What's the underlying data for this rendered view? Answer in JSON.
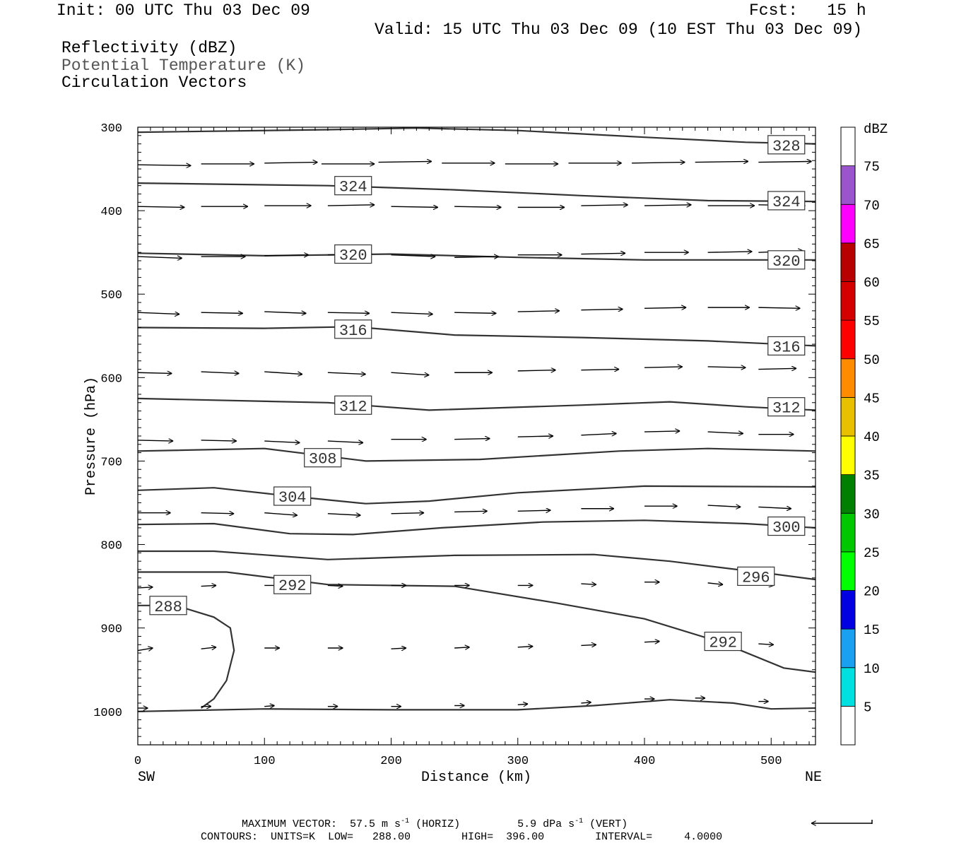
{
  "header": {
    "init": "Init: 00 UTC Thu 03 Dec 09",
    "fcst": "Fcst:   15 h",
    "valid": "Valid: 15 UTC Thu 03 Dec 09 (10 EST Thu 03 Dec 09)",
    "field1": "Reflectivity (dBZ)",
    "field2": "Potential Temperature (K)",
    "field3": "Circulation Vectors"
  },
  "footer": {
    "max_vector_label": "MAXIMUM VECTOR:",
    "horiz_val": "57.5 m s",
    "horiz_tail": " (HORIZ)",
    "vert_val": "5.9 dPa s",
    "vert_tail": " (VERT)",
    "exponent": "-1",
    "contours": "CONTOURS:  UNITS=K  LOW=   288.00        HIGH=  396.00        INTERVAL=     4.0000"
  },
  "chart_data": {
    "type": "cross-section",
    "xlabel": "Distance (km)",
    "ylabel": "Pressure (hPa)",
    "xlim": [
      0,
      535
    ],
    "ylim": [
      300,
      1040
    ],
    "x_ticks": [
      0,
      100,
      200,
      300,
      400,
      500
    ],
    "y_ticks": [
      300,
      400,
      500,
      600,
      700,
      800,
      900,
      1000
    ],
    "x_end_labels": {
      "left": "SW",
      "right": "NE"
    },
    "colorbar": {
      "unit": "dBZ",
      "labels": [
        "5",
        "10",
        "15",
        "20",
        "25",
        "30",
        "35",
        "40",
        "45",
        "50",
        "55",
        "60",
        "65",
        "70",
        "75"
      ],
      "colors": [
        "#ffffff",
        "#00e0e0",
        "#1aa0f0",
        "#0000e0",
        "#00ff00",
        "#00c800",
        "#008000",
        "#ffff00",
        "#e8c000",
        "#ff8c00",
        "#ff0000",
        "#d40000",
        "#b80000",
        "#ff00ff",
        "#9a55cc",
        "#ffffff"
      ]
    },
    "isentropes": [
      {
        "label": "328",
        "points": [
          [
            0,
            306
          ],
          [
            150,
            303
          ],
          [
            220,
            301
          ],
          [
            300,
            304
          ],
          [
            400,
            312
          ],
          [
            480,
            318
          ],
          [
            535,
            320
          ]
        ],
        "labels_at": [
          [
            512,
            321
          ]
        ]
      },
      {
        "label": "324",
        "points": [
          [
            0,
            367
          ],
          [
            150,
            370
          ],
          [
            250,
            375
          ],
          [
            350,
            382
          ],
          [
            450,
            388
          ],
          [
            535,
            389
          ]
        ],
        "labels_at": [
          [
            170,
            370
          ],
          [
            512,
            388
          ]
        ]
      },
      {
        "label": "320",
        "points": [
          [
            0,
            451
          ],
          [
            100,
            454
          ],
          [
            200,
            452
          ],
          [
            300,
            456
          ],
          [
            400,
            459
          ],
          [
            535,
            459
          ]
        ],
        "labels_at": [
          [
            170,
            452
          ],
          [
            512,
            459
          ]
        ]
      },
      {
        "label": "316",
        "points": [
          [
            0,
            540
          ],
          [
            100,
            541
          ],
          [
            170,
            539
          ],
          [
            250,
            549
          ],
          [
            350,
            552
          ],
          [
            450,
            556
          ],
          [
            535,
            562
          ]
        ],
        "labels_at": [
          [
            170,
            542
          ],
          [
            512,
            562
          ]
        ]
      },
      {
        "label": "312",
        "points": [
          [
            0,
            625
          ],
          [
            150,
            630
          ],
          [
            230,
            639
          ],
          [
            350,
            633
          ],
          [
            420,
            629
          ],
          [
            480,
            635
          ],
          [
            535,
            639
          ]
        ],
        "labels_at": [
          [
            170,
            633
          ],
          [
            512,
            635
          ]
        ]
      },
      {
        "label": "308",
        "points": [
          [
            0,
            688
          ],
          [
            100,
            685
          ],
          [
            180,
            700
          ],
          [
            270,
            698
          ],
          [
            380,
            688
          ],
          [
            450,
            685
          ],
          [
            535,
            688
          ]
        ],
        "labels_at": [
          [
            146,
            696
          ]
        ]
      },
      {
        "label": "304",
        "points": [
          [
            0,
            735
          ],
          [
            60,
            732
          ],
          [
            120,
            742
          ],
          [
            180,
            751
          ],
          [
            230,
            748
          ],
          [
            300,
            738
          ],
          [
            400,
            730
          ],
          [
            535,
            731
          ]
        ],
        "labels_at": [
          [
            122,
            742
          ]
        ]
      },
      {
        "label": "300",
        "points": [
          [
            0,
            776
          ],
          [
            60,
            775
          ],
          [
            120,
            787
          ],
          [
            170,
            788
          ],
          [
            240,
            780
          ],
          [
            320,
            773
          ],
          [
            400,
            771
          ],
          [
            480,
            775
          ],
          [
            535,
            780
          ]
        ],
        "labels_at": [
          [
            512,
            778
          ]
        ]
      },
      {
        "label": "296",
        "points": [
          [
            0,
            808
          ],
          [
            60,
            808
          ],
          [
            150,
            818
          ],
          [
            250,
            813
          ],
          [
            360,
            812
          ],
          [
            420,
            820
          ],
          [
            500,
            835
          ],
          [
            535,
            842
          ]
        ],
        "labels_at": [
          [
            488,
            838
          ]
        ]
      },
      {
        "label": "292",
        "points": [
          [
            0,
            833
          ],
          [
            70,
            833
          ],
          [
            150,
            848
          ],
          [
            250,
            850
          ],
          [
            330,
            870
          ],
          [
            400,
            889
          ],
          [
            460,
            917
          ],
          [
            510,
            948
          ],
          [
            535,
            953
          ]
        ],
        "labels_at": [
          [
            122,
            848
          ],
          [
            462,
            916
          ]
        ]
      },
      {
        "label": "288",
        "points": [
          [
            0,
            873
          ],
          [
            30,
            873
          ],
          [
            60,
            887
          ],
          [
            73,
            900
          ],
          [
            76,
            927
          ],
          [
            70,
            963
          ],
          [
            60,
            985
          ],
          [
            50,
            996
          ]
        ],
        "labels_at": [
          [
            24,
            873
          ]
        ]
      },
      {
        "label": "",
        "points": [
          [
            0,
            1000
          ],
          [
            100,
            997
          ],
          [
            200,
            998
          ],
          [
            300,
            998
          ],
          [
            360,
            993
          ],
          [
            420,
            986
          ],
          [
            470,
            990
          ],
          [
            500,
            997
          ],
          [
            535,
            996
          ]
        ],
        "labels_at": []
      }
    ],
    "vector_levels": [
      {
        "p": 345,
        "vecs": [
          [
            0,
            345,
            42,
            346
          ],
          [
            50,
            344,
            92,
            344
          ],
          [
            100,
            343,
            142,
            342
          ],
          [
            145,
            344,
            187,
            344
          ],
          [
            190,
            342,
            232,
            341
          ],
          [
            240,
            343,
            282,
            343
          ],
          [
            290,
            344,
            332,
            344
          ],
          [
            340,
            343,
            382,
            343
          ],
          [
            390,
            343,
            432,
            342
          ],
          [
            440,
            342,
            482,
            341
          ],
          [
            490,
            342,
            532,
            341
          ]
        ]
      },
      {
        "p": 395,
        "vecs": [
          [
            0,
            395,
            37,
            396
          ],
          [
            50,
            395,
            87,
            395
          ],
          [
            100,
            394,
            137,
            394
          ],
          [
            150,
            394,
            187,
            393
          ],
          [
            200,
            395,
            237,
            396
          ],
          [
            250,
            395,
            287,
            396
          ],
          [
            300,
            396,
            337,
            396
          ],
          [
            350,
            394,
            387,
            393
          ],
          [
            400,
            394,
            437,
            393
          ],
          [
            450,
            394,
            487,
            394
          ],
          [
            490,
            393,
            527,
            394
          ]
        ]
      },
      {
        "p": 455,
        "vecs": [
          [
            0,
            455,
            35,
            457
          ],
          [
            50,
            455,
            85,
            455
          ],
          [
            100,
            454,
            135,
            453
          ],
          [
            150,
            453,
            185,
            452
          ],
          [
            200,
            453,
            235,
            455
          ],
          [
            250,
            456,
            285,
            455
          ],
          [
            300,
            453,
            335,
            453
          ],
          [
            350,
            452,
            385,
            451
          ],
          [
            400,
            450,
            435,
            450
          ],
          [
            450,
            450,
            485,
            449
          ],
          [
            490,
            450,
            525,
            448
          ]
        ]
      },
      {
        "p": 522,
        "vecs": [
          [
            0,
            522,
            33,
            524
          ],
          [
            50,
            522,
            83,
            523
          ],
          [
            100,
            521,
            133,
            523
          ],
          [
            150,
            522,
            183,
            523
          ],
          [
            200,
            522,
            233,
            524
          ],
          [
            250,
            522,
            283,
            523
          ],
          [
            300,
            521,
            333,
            520
          ],
          [
            350,
            519,
            383,
            518
          ],
          [
            400,
            517,
            433,
            516
          ],
          [
            450,
            516,
            483,
            516
          ],
          [
            490,
            516,
            523,
            517
          ]
        ]
      },
      {
        "p": 594,
        "vecs": [
          [
            0,
            594,
            27,
            595
          ],
          [
            50,
            593,
            80,
            595
          ],
          [
            100,
            593,
            130,
            596
          ],
          [
            150,
            594,
            180,
            596
          ],
          [
            200,
            594,
            230,
            597
          ],
          [
            250,
            594,
            280,
            594
          ],
          [
            300,
            592,
            330,
            591
          ],
          [
            350,
            591,
            380,
            590
          ],
          [
            400,
            588,
            430,
            587
          ],
          [
            450,
            587,
            480,
            588
          ],
          [
            490,
            590,
            520,
            589
          ]
        ]
      },
      {
        "p": 676,
        "vecs": [
          [
            0,
            675,
            28,
            676
          ],
          [
            50,
            675,
            78,
            676
          ],
          [
            100,
            676,
            128,
            678
          ],
          [
            150,
            676,
            178,
            678
          ],
          [
            200,
            674,
            228,
            674
          ],
          [
            250,
            674,
            278,
            673
          ],
          [
            300,
            671,
            328,
            670
          ],
          [
            350,
            669,
            378,
            667
          ],
          [
            400,
            665,
            428,
            664
          ],
          [
            450,
            665,
            478,
            667
          ],
          [
            490,
            668,
            518,
            668
          ]
        ]
      },
      {
        "p": 763,
        "vecs": [
          [
            0,
            762,
            26,
            762
          ],
          [
            50,
            762,
            76,
            763
          ],
          [
            100,
            762,
            126,
            765
          ],
          [
            150,
            763,
            176,
            765
          ],
          [
            200,
            763,
            226,
            762
          ],
          [
            250,
            761,
            276,
            760
          ],
          [
            300,
            760,
            326,
            759
          ],
          [
            350,
            757,
            376,
            757
          ],
          [
            400,
            754,
            426,
            754
          ],
          [
            450,
            753,
            476,
            755
          ],
          [
            490,
            755,
            516,
            757
          ]
        ]
      },
      {
        "p": 850,
        "vecs": [
          [
            0,
            852,
            12,
            851
          ],
          [
            50,
            850,
            62,
            849
          ],
          [
            100,
            849,
            112,
            849
          ],
          [
            150,
            849,
            162,
            850
          ],
          [
            200,
            849,
            212,
            849
          ],
          [
            250,
            849,
            262,
            849
          ],
          [
            300,
            849,
            312,
            849
          ],
          [
            350,
            847,
            362,
            848
          ],
          [
            400,
            845,
            412,
            845
          ],
          [
            450,
            846,
            462,
            848
          ],
          [
            490,
            847,
            502,
            849
          ]
        ]
      },
      {
        "p": 925,
        "vecs": [
          [
            0,
            927,
            12,
            924
          ],
          [
            50,
            925,
            62,
            923
          ],
          [
            100,
            924,
            112,
            924
          ],
          [
            150,
            924,
            162,
            924
          ],
          [
            200,
            925,
            212,
            924
          ],
          [
            250,
            924,
            262,
            923
          ],
          [
            300,
            923,
            312,
            922
          ],
          [
            350,
            921,
            362,
            920
          ],
          [
            400,
            917,
            412,
            916
          ],
          [
            450,
            918,
            462,
            918
          ],
          [
            490,
            919,
            502,
            920
          ]
        ]
      },
      {
        "p": 995,
        "vecs": [
          [
            0,
            996,
            8,
            996
          ],
          [
            50,
            994,
            58,
            994
          ],
          [
            100,
            994,
            108,
            993
          ],
          [
            150,
            994,
            158,
            994
          ],
          [
            200,
            994,
            208,
            994
          ],
          [
            250,
            993,
            258,
            993
          ],
          [
            300,
            992,
            308,
            991
          ],
          [
            350,
            990,
            358,
            989
          ],
          [
            400,
            985,
            408,
            985
          ],
          [
            440,
            984,
            448,
            984
          ],
          [
            490,
            988,
            498,
            988
          ]
        ]
      }
    ],
    "reference_vector": "arrow pointing left"
  }
}
